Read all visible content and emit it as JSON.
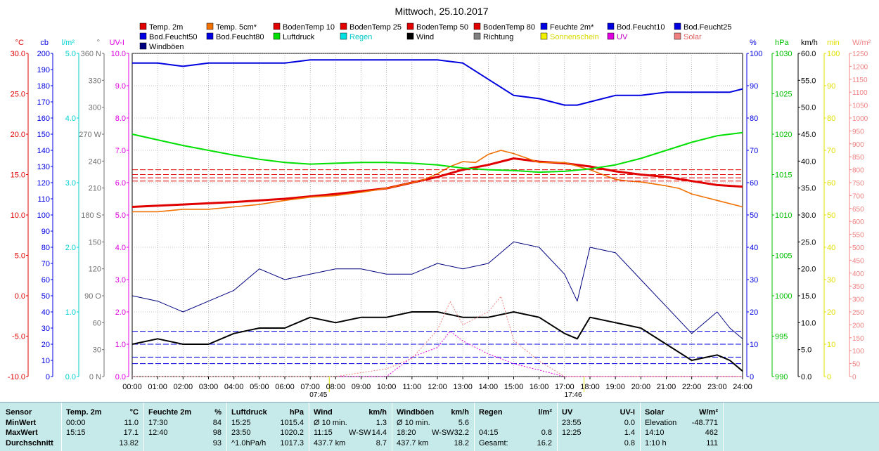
{
  "title": "Mittwoch, 25.10.2017",
  "legend": [
    {
      "name": "Temp. 2m",
      "color": "#e00000"
    },
    {
      "name": "Temp. 5cm*",
      "color": "#f07000"
    },
    {
      "name": "BodenTemp 10",
      "color": "#e00000"
    },
    {
      "name": "BodenTemp 25",
      "color": "#e00000"
    },
    {
      "name": "BodenTemp 50",
      "color": "#e00000"
    },
    {
      "name": "BodenTemp 80",
      "color": "#e00000"
    },
    {
      "name": "Feuchte 2m*",
      "color": "#0000e0"
    },
    {
      "name": "Bod.Feucht10",
      "color": "#0000e0"
    },
    {
      "name": "Bod.Feucht25",
      "color": "#0000e0"
    },
    {
      "name": "Bod.Feucht50",
      "color": "#0000e0"
    },
    {
      "name": "Bod.Feucht80",
      "color": "#0000e0"
    },
    {
      "name": "Luftdruck",
      "color": "#00e000"
    },
    {
      "name": "Regen",
      "color": "#00e0e0"
    },
    {
      "name": "Wind",
      "color": "#000000"
    },
    {
      "name": "Richtung",
      "color": "#808080"
    },
    {
      "name": "Sonnenschein",
      "color": "#f0f000"
    },
    {
      "name": "UV",
      "color": "#e000e0"
    },
    {
      "name": "Solar",
      "color": "#f08080"
    },
    {
      "name": "Windböen",
      "color": "#000080"
    }
  ],
  "left_axes": [
    {
      "unit": "°C",
      "color": "#e00000",
      "ticks": [
        "30.0",
        "25.0",
        "20.0",
        "15.0",
        "10.0",
        "5.0",
        "0.0",
        "-5.0",
        "-10.0"
      ]
    },
    {
      "unit": "cb",
      "color": "#0000e0",
      "ticks": [
        "200",
        "190",
        "180",
        "170",
        "160",
        "150",
        "140",
        "130",
        "120",
        "110",
        "100",
        "90",
        "80",
        "70",
        "60",
        "50",
        "40",
        "30",
        "20",
        "10",
        "0"
      ]
    },
    {
      "unit": "l/m²",
      "color": "#00d0d0",
      "ticks": [
        "5.0",
        "4.0",
        "3.0",
        "2.0",
        "1.0",
        "0.0"
      ]
    },
    {
      "unit": "°",
      "color": "#707070",
      "ticks": [
        "360 N",
        "330",
        "300",
        "270 W",
        "240",
        "210",
        "180 S",
        "150",
        "120",
        "90 O",
        "60",
        "30",
        "0 N"
      ]
    },
    {
      "unit": "UV-I",
      "color": "#e000e0",
      "ticks": [
        "10.0",
        "9.0",
        "8.0",
        "7.0",
        "6.0",
        "5.0",
        "4.0",
        "3.0",
        "2.0",
        "1.0",
        "0.0"
      ]
    }
  ],
  "right_axes": [
    {
      "unit": "%",
      "color": "#0000e0",
      "ticks": [
        "100",
        "90",
        "80",
        "70",
        "60",
        "50",
        "40",
        "30",
        "20",
        "10",
        "0"
      ]
    },
    {
      "unit": "hPa",
      "color": "#00c000",
      "ticks": [
        "1030",
        "1025",
        "1020",
        "1015",
        "1010",
        "1005",
        "1000",
        "995",
        "990"
      ]
    },
    {
      "unit": "km/h",
      "color": "#000000",
      "ticks": [
        "60.0",
        "55.0",
        "50.0",
        "45.0",
        "40.0",
        "35.0",
        "30.0",
        "25.0",
        "20.0",
        "15.0",
        "10.0",
        "5.0",
        "0.0"
      ]
    },
    {
      "unit": "min",
      "color": "#e0e000",
      "ticks": [
        "100",
        "90",
        "80",
        "70",
        "60",
        "50",
        "40",
        "30",
        "20",
        "10",
        "0"
      ]
    },
    {
      "unit": "W/m²",
      "color": "#f08080",
      "ticks": [
        "1250",
        "1200",
        "1150",
        "1100",
        "1050",
        "1000",
        "950",
        "900",
        "850",
        "800",
        "750",
        "700",
        "650",
        "600",
        "550",
        "500",
        "450",
        "400",
        "350",
        "300",
        "250",
        "200",
        "150",
        "100",
        "50",
        "0"
      ]
    }
  ],
  "x_ticks": [
    "00:00",
    "01:00",
    "02:00",
    "03:00",
    "04:00",
    "05:00",
    "06:00",
    "07:00",
    "08:00",
    "09:00",
    "10:00",
    "11:00",
    "12:00",
    "13:00",
    "14:00",
    "15:00",
    "16:00",
    "17:00",
    "18:00",
    "19:00",
    "20:00",
    "21:00",
    "22:00",
    "23:00",
    "24:00"
  ],
  "sunrise": "07:45",
  "sunset": "17:46",
  "chart_data": {
    "type": "line",
    "title": "Mittwoch, 25.10.2017",
    "x_range": [
      "00:00",
      "24:00"
    ],
    "series": [
      {
        "name": "Temp. 2m",
        "unit": "°C",
        "color": "#e00000",
        "x": [
          0,
          2,
          4,
          6,
          8,
          10,
          11,
          12,
          13,
          14,
          15,
          16,
          17,
          18,
          19,
          20,
          21,
          22,
          23,
          24
        ],
        "y": [
          11.0,
          11.3,
          11.6,
          12.0,
          12.6,
          13.3,
          14.0,
          14.7,
          15.6,
          16.2,
          17.0,
          16.6,
          16.4,
          16.0,
          15.4,
          15.0,
          14.7,
          14.2,
          13.7,
          13.5
        ]
      },
      {
        "name": "Temp. 5cm*",
        "unit": "°C",
        "color": "#f07000",
        "x": [
          0,
          1,
          2,
          3,
          4,
          5,
          6,
          7,
          8,
          9,
          10,
          11,
          11.5,
          12,
          12.5,
          13,
          13.5,
          14,
          14.5,
          15,
          16,
          17,
          18,
          19,
          19.5,
          20,
          21,
          21.5,
          22,
          23,
          24
        ],
        "y": [
          10.4,
          10.4,
          10.7,
          10.7,
          11.0,
          11.3,
          11.8,
          12.2,
          12.4,
          12.8,
          13.3,
          14.0,
          14.4,
          15.1,
          16.0,
          16.6,
          16.5,
          17.5,
          18.0,
          17.6,
          16.5,
          16.5,
          15.6,
          14.4,
          14.2,
          14.1,
          13.6,
          13.3,
          12.6,
          11.8,
          11.0
        ]
      },
      {
        "name": "BodenTemp 10",
        "unit": "°C",
        "color": "#e00000",
        "x": [
          0,
          24
        ],
        "y": [
          14.2,
          14.2
        ]
      },
      {
        "name": "BodenTemp 25",
        "unit": "°C",
        "color": "#e00000",
        "x": [
          0,
          24
        ],
        "y": [
          14.6,
          14.6
        ]
      },
      {
        "name": "BodenTemp 50",
        "unit": "°C",
        "color": "#e00000",
        "x": [
          0,
          24
        ],
        "y": [
          15.0,
          15.0
        ]
      },
      {
        "name": "BodenTemp 80",
        "unit": "°C",
        "color": "#e00000",
        "x": [
          0,
          24
        ],
        "y": [
          15.6,
          15.6
        ]
      },
      {
        "name": "Feuchte 2m*",
        "unit": "%",
        "color": "#0000e0",
        "x": [
          0,
          1,
          2,
          3,
          4,
          5,
          6,
          7,
          8,
          9,
          10,
          11,
          12,
          13,
          14,
          15,
          16,
          17,
          17.5,
          18,
          19,
          20,
          21,
          22,
          23,
          23.5,
          24
        ],
        "y": [
          97,
          97,
          96,
          97,
          97,
          97,
          97,
          98,
          98,
          98,
          98,
          98,
          98,
          97,
          92,
          87,
          86,
          84,
          84,
          85,
          87,
          87,
          88,
          88,
          88,
          88,
          89
        ]
      },
      {
        "name": "Bod.Feucht10",
        "unit": "cb",
        "color": "#0000e0",
        "x": [
          0,
          24
        ],
        "y": [
          8,
          8
        ]
      },
      {
        "name": "Bod.Feucht25",
        "unit": "cb",
        "color": "#0000e0",
        "x": [
          0,
          24
        ],
        "y": [
          12,
          12
        ]
      },
      {
        "name": "Bod.Feucht50",
        "unit": "cb",
        "color": "#0000e0",
        "x": [
          0,
          24
        ],
        "y": [
          20,
          20
        ]
      },
      {
        "name": "Bod.Feucht80",
        "unit": "cb",
        "color": "#0000e0",
        "x": [
          0,
          24
        ],
        "y": [
          28,
          28
        ]
      },
      {
        "name": "Luftdruck",
        "unit": "hPa",
        "color": "#00e000",
        "x": [
          0,
          1,
          2,
          3,
          4,
          5,
          6,
          7,
          8,
          9,
          10,
          11,
          12,
          13,
          14,
          15,
          16,
          17,
          18,
          19,
          20,
          21,
          22,
          23,
          24
        ],
        "y": [
          1020.0,
          1019.3,
          1018.6,
          1018.0,
          1017.4,
          1016.9,
          1016.5,
          1016.3,
          1016.4,
          1016.5,
          1016.5,
          1016.4,
          1016.2,
          1015.8,
          1015.6,
          1015.5,
          1015.3,
          1015.4,
          1015.7,
          1016.2,
          1017.0,
          1018.0,
          1019.0,
          1019.8,
          1020.2
        ]
      },
      {
        "name": "Wind",
        "unit": "km/h",
        "color": "#000000",
        "x": [
          0,
          1,
          2,
          3,
          4,
          5,
          6,
          7,
          8,
          9,
          10,
          11,
          12,
          13,
          14,
          15,
          16,
          17,
          17.5,
          18,
          19,
          20,
          21,
          22,
          23,
          23.5,
          24
        ],
        "y": [
          6,
          7,
          6,
          6,
          8,
          9,
          9,
          11,
          10,
          11,
          11,
          12,
          12,
          11,
          11,
          12,
          11,
          8,
          7,
          11,
          10,
          9,
          6,
          3,
          4,
          3,
          1
        ]
      },
      {
        "name": "Windböen",
        "unit": "km/h",
        "color": "#000080",
        "x": [
          0,
          1,
          2,
          3,
          4,
          5,
          6,
          7,
          8,
          9,
          10,
          11,
          12,
          13,
          14,
          15,
          16,
          17,
          17.5,
          18,
          19,
          20,
          21,
          22,
          23,
          23.5,
          24
        ],
        "y": [
          15,
          14,
          12,
          14,
          16,
          20,
          18,
          19,
          20,
          20,
          19,
          19,
          21,
          20,
          21,
          25,
          24,
          19,
          14,
          24,
          23,
          18,
          13,
          8,
          12,
          9,
          7
        ]
      },
      {
        "name": "UV",
        "unit": "UV-I",
        "color": "#e000e0",
        "x": [
          0,
          10,
          11,
          12,
          12.5,
          13,
          14,
          15,
          16,
          17,
          24
        ],
        "y": [
          0,
          0,
          0.6,
          0.9,
          1.4,
          1.1,
          0.7,
          0.4,
          0.2,
          0,
          0
        ]
      },
      {
        "name": "Solar",
        "unit": "W/m²",
        "color": "#f08080",
        "x": [
          0,
          8,
          10,
          11,
          12,
          12.5,
          13,
          14,
          14.5,
          15,
          16,
          17,
          24
        ],
        "y": [
          0,
          0,
          30,
          70,
          180,
          290,
          200,
          250,
          310,
          140,
          60,
          0,
          0
        ]
      }
    ]
  },
  "summary": {
    "sensor": {
      "label": "Sensor",
      "rows": [
        "MinWert",
        "MaxWert",
        "Durchschnitt"
      ]
    },
    "temp": {
      "label": "Temp. 2m",
      "unit": "°C",
      "rows": [
        [
          "00:00",
          "11.0"
        ],
        [
          "15:15",
          "17.1"
        ],
        [
          "",
          "13.82"
        ]
      ]
    },
    "feuchte": {
      "label": "Feuchte 2m",
      "unit": "%",
      "rows": [
        [
          "17:30",
          "84"
        ],
        [
          "12:40",
          "98"
        ],
        [
          "",
          "93"
        ]
      ]
    },
    "luftdruck": {
      "label": "Luftdruck",
      "unit": "hPa",
      "rows": [
        [
          "15:25",
          "1015.4"
        ],
        [
          "23:50",
          "1020.2"
        ],
        [
          "^1.0hPa/h",
          "1017.3"
        ]
      ]
    },
    "wind": {
      "label": "Wind",
      "unit": "km/h",
      "rows": [
        [
          "Ø 10 min.",
          "",
          "1.3"
        ],
        [
          "11:15",
          "W-SW",
          "14.4"
        ],
        [
          "437.7 km",
          "",
          "8.7"
        ]
      ]
    },
    "windboeen": {
      "label": "Windböen",
      "unit": "km/h",
      "rows": [
        [
          "Ø 10 min.",
          "",
          "5.6"
        ],
        [
          "18:20",
          "W-SW",
          "32.2"
        ],
        [
          "437.7 km",
          "",
          "18.2"
        ]
      ]
    },
    "regen": {
      "label": "Regen",
      "unit": "l/m²",
      "rows": [
        [
          "",
          ""
        ],
        [
          "04:15",
          "0.8"
        ],
        [
          "Gesamt:",
          "16.2"
        ]
      ]
    },
    "uv": {
      "label": "UV",
      "unit": "UV-I",
      "rows": [
        [
          "23:55",
          "0.0"
        ],
        [
          "12:25",
          "1.4"
        ],
        [
          "",
          "0.8"
        ]
      ]
    },
    "solar": {
      "label": "Solar",
      "unit": "W/m²",
      "rows": [
        [
          "Elevation",
          "-48.771"
        ],
        [
          "14:10",
          "462"
        ],
        [
          "1:10 h",
          "111"
        ]
      ]
    }
  }
}
